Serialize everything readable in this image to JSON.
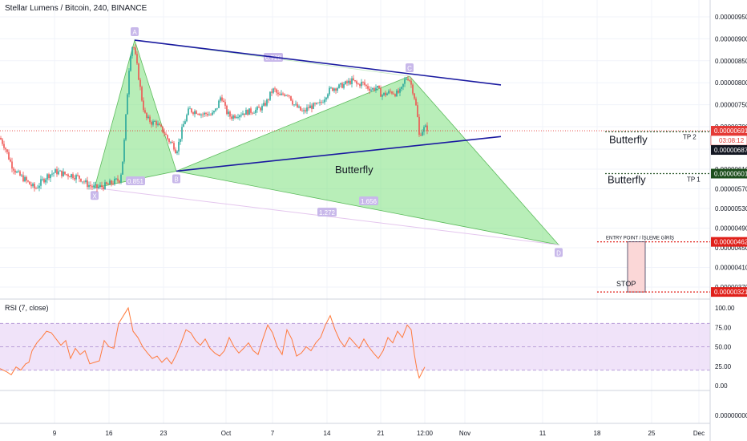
{
  "header": {
    "symbol_title": "Stellar Lumens / Bitcoin, 240, BINANCE"
  },
  "colors": {
    "up_candle": "#26a69a",
    "down_candle": "#ef5350",
    "pattern_fill": "#7ee07e",
    "trendline": "#1a1aa0",
    "pattern_label": "#c8b8ea",
    "rsi_line": "#ff7a3c",
    "rsi_band": "#ead7f7",
    "price_line": "#e53935",
    "tp_line": "#2e5a2e",
    "stop_box": "#fbd7d7"
  },
  "chart_data": [
    {
      "type": "candlestick",
      "title": "Stellar Lumens / Bitcoin, 240, BINANCE",
      "xlabel": "",
      "ylabel": "",
      "ylim": [
        2.9e-06,
        9.8e-06
      ],
      "x_ticks": [
        "9",
        "16",
        "23",
        "Oct",
        "7",
        "14",
        "21",
        "12:00",
        "Nov",
        "11",
        "18",
        "25",
        "Dec"
      ],
      "y_ticks": [
        3.7e-06,
        4.1e-06,
        4.5e-06,
        4.9e-06,
        5.3e-06,
        5.7e-06,
        6.1e-06,
        6.5e-06,
        7e-06,
        7.5e-06,
        8e-06,
        8.5e-06,
        9e-06,
        9.5e-06
      ],
      "y_tick_labels": [
        "0.00000370",
        "0.00000410",
        "0.00000450",
        "0.00000490",
        "0.00000530",
        "0.00000570",
        "0.00000610",
        "0.00000650",
        "0.00000700",
        "0.00000750",
        "0.00000800",
        "0.00000850",
        "0.00000900",
        "0.00000950"
      ],
      "grid": true,
      "price_path": [
        [
          0,
          675
        ],
        [
          6,
          655
        ],
        [
          14,
          620
        ],
        [
          22,
          600
        ],
        [
          30,
          590
        ],
        [
          38,
          578
        ],
        [
          44,
          570
        ],
        [
          52,
          585
        ],
        [
          60,
          598
        ],
        [
          70,
          605
        ],
        [
          80,
          600
        ],
        [
          90,
          598
        ],
        [
          100,
          592
        ],
        [
          108,
          580
        ],
        [
          118,
          572
        ],
        [
          126,
          574
        ],
        [
          134,
          578
        ],
        [
          142,
          584
        ],
        [
          150,
          590
        ],
        [
          154,
          640
        ],
        [
          158,
          750
        ],
        [
          162,
          860
        ],
        [
          166,
          890
        ],
        [
          170,
          850
        ],
        [
          174,
          800
        ],
        [
          178,
          750
        ],
        [
          182,
          720
        ],
        [
          186,
          715
        ],
        [
          190,
          708
        ],
        [
          194,
          712
        ],
        [
          198,
          700
        ],
        [
          204,
          690
        ],
        [
          210,
          670
        ],
        [
          216,
          660
        ],
        [
          220,
          645
        ],
        [
          224,
          670
        ],
        [
          228,
          700
        ],
        [
          232,
          720
        ],
        [
          236,
          740
        ],
        [
          240,
          735
        ],
        [
          246,
          735
        ],
        [
          252,
          728
        ],
        [
          258,
          730
        ],
        [
          264,
          726
        ],
        [
          270,
          740
        ],
        [
          276,
          772
        ],
        [
          282,
          735
        ],
        [
          288,
          722
        ],
        [
          296,
          728
        ],
        [
          304,
          732
        ],
        [
          312,
          735
        ],
        [
          320,
          738
        ],
        [
          328,
          745
        ],
        [
          334,
          760
        ],
        [
          338,
          778
        ],
        [
          342,
          785
        ],
        [
          348,
          768
        ],
        [
          354,
          775
        ],
        [
          360,
          776
        ],
        [
          366,
          752
        ],
        [
          372,
          742
        ],
        [
          378,
          732
        ],
        [
          386,
          745
        ],
        [
          394,
          748
        ],
        [
          400,
          752
        ],
        [
          406,
          770
        ],
        [
          410,
          782
        ],
        [
          416,
          788
        ],
        [
          422,
          790
        ],
        [
          428,
          795
        ],
        [
          434,
          800
        ],
        [
          440,
          805
        ],
        [
          446,
          795
        ],
        [
          452,
          800
        ],
        [
          458,
          790
        ],
        [
          464,
          785
        ],
        [
          470,
          790
        ],
        [
          476,
          772
        ],
        [
          482,
          775
        ],
        [
          488,
          780
        ],
        [
          494,
          775
        ],
        [
          500,
          780
        ],
        [
          506,
          810
        ],
        [
          510,
          812
        ],
        [
          514,
          790
        ],
        [
          518,
          760
        ],
        [
          521,
          720
        ],
        [
          523,
          680
        ],
        [
          526,
          690
        ],
        [
          530,
          698
        ],
        [
          533,
          696
        ]
      ],
      "pattern_points": [
        {
          "label": "X",
          "t": 118,
          "price": 5.72e-06
        },
        {
          "label": "A",
          "t": 168,
          "price": 8.97e-06
        },
        {
          "label": "B",
          "t": 220,
          "price": 6.06e-06
        },
        {
          "label": "C",
          "t": 511,
          "price": 8.15e-06
        },
        {
          "label": "D",
          "t": 697,
          "price": 4.56e-06
        }
      ],
      "pattern_ratios": [
        {
          "label": "0.851",
          "between": "A-B"
        },
        {
          "label": "0.728",
          "between": "A-C"
        },
        {
          "label": "1.656",
          "between": "B-D"
        },
        {
          "label": "1.272",
          "between": "X-D"
        }
      ],
      "trendlines": [
        {
          "from": {
            "t": 168,
            "price": 8.97e-06
          },
          "to": {
            "t": 625,
            "price": 7.95e-06
          }
        },
        {
          "from": {
            "t": 220,
            "price": 6.06e-06
          },
          "to": {
            "t": 625,
            "price": 6.78e-06
          }
        }
      ],
      "levels": [
        {
          "name": "current",
          "price": 6.91e-06,
          "label": "0.00000691",
          "countdown": "03:08:12"
        },
        {
          "name": "tp2",
          "price": 6.87e-06,
          "label": "0.00000687",
          "text": "TP 2"
        },
        {
          "name": "tp1",
          "price": 6.01e-06,
          "label": "0.00000601",
          "text": "TP 1"
        },
        {
          "name": "entry",
          "price": 4.62e-06,
          "label": "0.00000462",
          "text": "ENTRY POINT / İŞLEME GİRİŞ"
        },
        {
          "name": "stop",
          "price": 3.21e-06,
          "label": "0.00000321",
          "text": "STOP"
        }
      ],
      "annotations": [
        {
          "text": "Butterfly",
          "near": "TP 2"
        },
        {
          "text": "Butterfly",
          "near": "TP 1"
        },
        {
          "text": "Butterfly",
          "near": "pattern"
        }
      ]
    },
    {
      "type": "line",
      "title": "RSI (7, close)",
      "xlabel": "",
      "ylabel": "",
      "ylim": [
        -30,
        110
      ],
      "y_ticks": [
        0,
        25,
        50,
        75,
        100
      ],
      "y_tick_labels": [
        "0.00",
        "25.00",
        "50.00",
        "75.00",
        "100.00"
      ],
      "band": [
        20,
        80
      ],
      "series": [
        {
          "values": [
            [
              0,
              22
            ],
            [
              8,
              18
            ],
            [
              14,
              14
            ],
            [
              20,
              24
            ],
            [
              26,
              20
            ],
            [
              32,
              28
            ],
            [
              36,
              30
            ],
            [
              40,
              45
            ],
            [
              46,
              55
            ],
            [
              52,
              62
            ],
            [
              58,
              70
            ],
            [
              64,
              68
            ],
            [
              70,
              60
            ],
            [
              76,
              52
            ],
            [
              82,
              58
            ],
            [
              88,
              35
            ],
            [
              94,
              48
            ],
            [
              100,
              40
            ],
            [
              106,
              45
            ],
            [
              112,
              28
            ],
            [
              118,
              30
            ],
            [
              124,
              32
            ],
            [
              130,
              58
            ],
            [
              136,
              50
            ],
            [
              142,
              48
            ],
            [
              148,
              80
            ],
            [
              154,
              90
            ],
            [
              160,
              100
            ],
            [
              166,
              70
            ],
            [
              172,
              62
            ],
            [
              178,
              50
            ],
            [
              184,
              42
            ],
            [
              190,
              35
            ],
            [
              196,
              38
            ],
            [
              202,
              30
            ],
            [
              208,
              36
            ],
            [
              214,
              28
            ],
            [
              220,
              40
            ],
            [
              226,
              55
            ],
            [
              232,
              72
            ],
            [
              238,
              68
            ],
            [
              244,
              58
            ],
            [
              250,
              52
            ],
            [
              256,
              60
            ],
            [
              262,
              48
            ],
            [
              268,
              42
            ],
            [
              274,
              38
            ],
            [
              280,
              45
            ],
            [
              286,
              62
            ],
            [
              292,
              50
            ],
            [
              298,
              42
            ],
            [
              304,
              48
            ],
            [
              310,
              55
            ],
            [
              316,
              45
            ],
            [
              322,
              40
            ],
            [
              328,
              60
            ],
            [
              334,
              78
            ],
            [
              340,
              68
            ],
            [
              346,
              50
            ],
            [
              352,
              40
            ],
            [
              358,
              72
            ],
            [
              364,
              60
            ],
            [
              370,
              38
            ],
            [
              376,
              42
            ],
            [
              382,
              50
            ],
            [
              388,
              45
            ],
            [
              394,
              55
            ],
            [
              400,
              62
            ],
            [
              406,
              78
            ],
            [
              412,
              90
            ],
            [
              418,
              72
            ],
            [
              424,
              58
            ],
            [
              430,
              50
            ],
            [
              436,
              62
            ],
            [
              442,
              55
            ],
            [
              448,
              48
            ],
            [
              454,
              60
            ],
            [
              460,
              50
            ],
            [
              466,
              42
            ],
            [
              472,
              35
            ],
            [
              478,
              45
            ],
            [
              484,
              62
            ],
            [
              490,
              55
            ],
            [
              496,
              70
            ],
            [
              502,
              62
            ],
            [
              508,
              78
            ],
            [
              513,
              72
            ],
            [
              517,
              40
            ],
            [
              520,
              22
            ],
            [
              523,
              10
            ],
            [
              526,
              16
            ],
            [
              530,
              24
            ]
          ]
        }
      ]
    }
  ],
  "time_axis_labels": [
    "9",
    "16",
    "23",
    "Oct",
    "7",
    "14",
    "21",
    "12:00",
    "Nov",
    "11",
    "18",
    "25",
    "Dec"
  ],
  "sub_axis_label": "0.00000000"
}
